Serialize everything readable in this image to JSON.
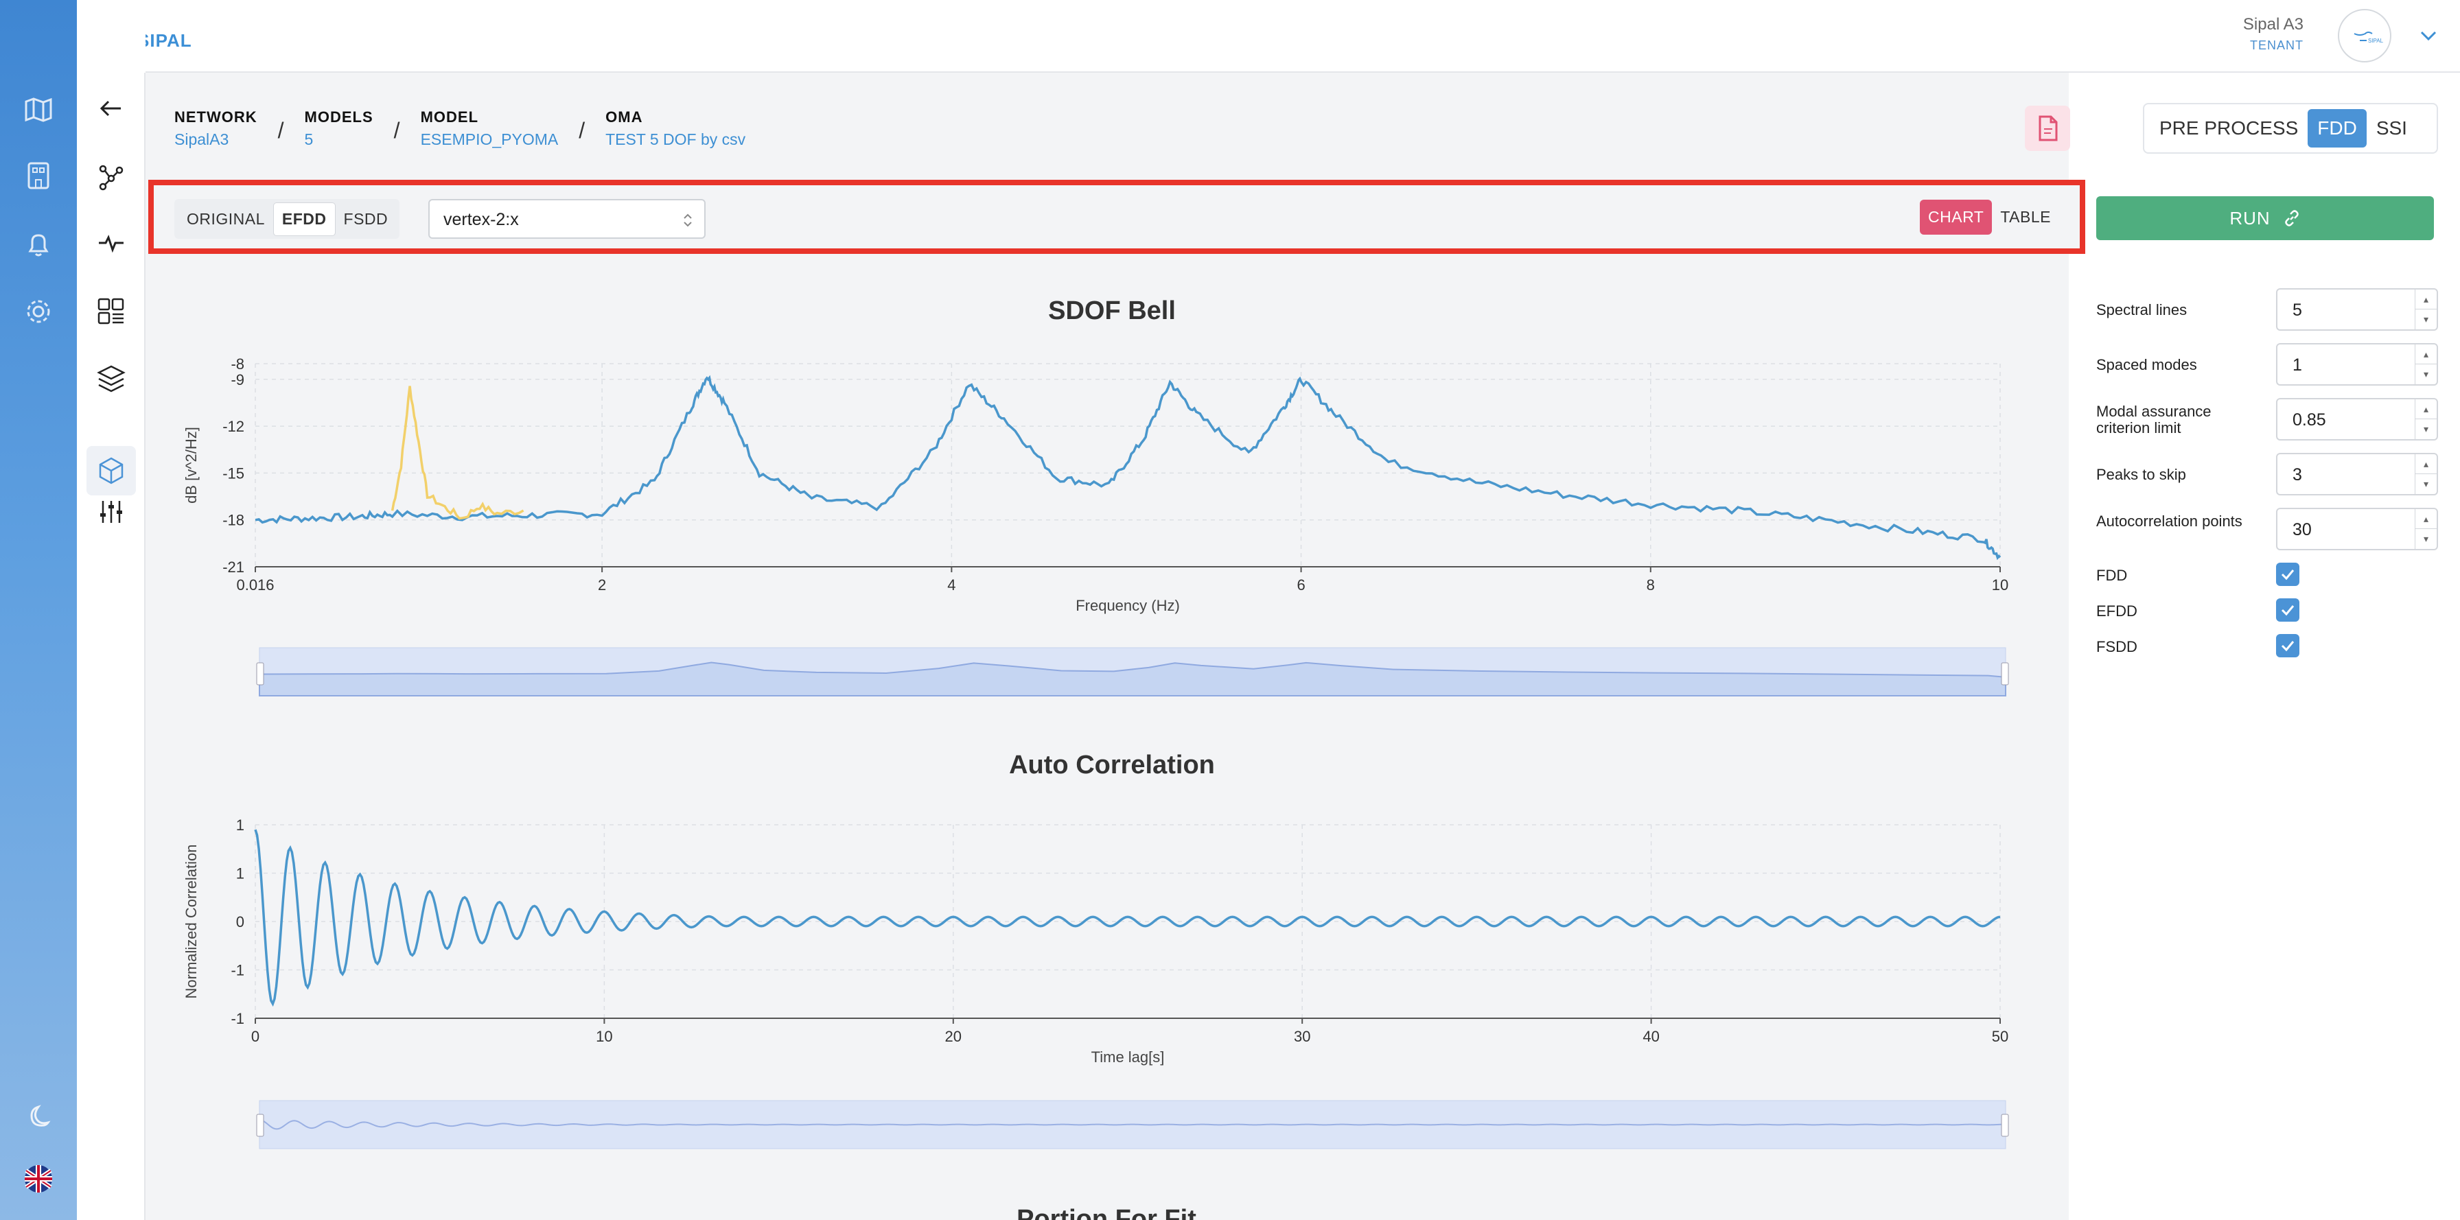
{
  "app": {
    "brand": "SIPAL",
    "user_name": "Sipal A3",
    "user_role": "TENANT",
    "avatar_text": "SIPAL"
  },
  "breadcrumb": [
    {
      "label": "NETWORK",
      "value": "SipalA3"
    },
    {
      "label": "MODELS",
      "value": "5"
    },
    {
      "label": "MODEL",
      "value": "ESEMPIO_PYOMA"
    },
    {
      "label": "OMA",
      "value": "TEST 5 DOF by csv"
    }
  ],
  "breadcrumb_sep": "/",
  "modes": {
    "pre_process": "PRE PROCESS",
    "fdd": "FDD",
    "ssi": "SSI",
    "active": "FDD"
  },
  "toolbar": {
    "methods": [
      "ORIGINAL",
      "EFDD",
      "FSDD"
    ],
    "active_method": "EFDD",
    "selected_channel": "vertex-2:x",
    "view_chart": "CHART",
    "view_table": "TABLE",
    "active_view": "CHART"
  },
  "run_label": "RUN",
  "params": {
    "spectral_lines": {
      "label": "Spectral lines",
      "value": "5"
    },
    "spaced_modes": {
      "label": "Spaced modes",
      "value": "1"
    },
    "mac_limit": {
      "label": "Modal assurance criterion limit",
      "value": "0.85"
    },
    "peaks_to_skip": {
      "label": "Peaks to skip",
      "value": "3"
    },
    "autocorrelation_points": {
      "label": "Autocorrelation points",
      "value": "30"
    },
    "fdd": {
      "label": "FDD",
      "checked": true
    },
    "efdd": {
      "label": "EFDD",
      "checked": true
    },
    "fsdd": {
      "label": "FSDD",
      "checked": true
    }
  },
  "colors": {
    "accent": "#4b93d6",
    "highlight": "#e8342a",
    "run": "#4fae7f",
    "chart_active": "#e05373",
    "series_blue": "#4a97cc",
    "series_yellow": "#f2d06a"
  },
  "chart_data": [
    {
      "type": "line",
      "title": "SDOF Bell",
      "xlabel": "Frequency (Hz)",
      "ylabel": "dB [v^2/Hz]",
      "xlim": [
        0.016,
        10
      ],
      "ylim": [
        -21,
        -8
      ],
      "x_ticks": [
        "0.016",
        "2",
        "4",
        "6",
        "8",
        "10"
      ],
      "y_ticks": [
        "-8",
        "-9",
        "-12",
        "-15",
        "-18",
        "-21"
      ],
      "series": [
        {
          "x": [
            0.016,
            0.3,
            0.6,
            0.8,
            1.2,
            1.6,
            2.0,
            2.3,
            2.5,
            2.6,
            2.7,
            2.9,
            3.2,
            3.6,
            3.9,
            4.1,
            4.3,
            4.6,
            4.9,
            5.1,
            5.25,
            5.4,
            5.7,
            5.9,
            6.0,
            6.2,
            6.5,
            7.0,
            7.5,
            8.0,
            8.5,
            9.0,
            9.5,
            9.9,
            10.0
          ],
          "y": [
            -18.0,
            -17.9,
            -17.8,
            -17.6,
            -17.8,
            -17.7,
            -17.6,
            -15.5,
            -11.0,
            -8.8,
            -10.5,
            -15.0,
            -16.6,
            -17.2,
            -13.5,
            -9.3,
            -11.5,
            -15.3,
            -15.8,
            -12.8,
            -9.2,
            -11.2,
            -13.8,
            -10.8,
            -9.0,
            -11.3,
            -14.3,
            -15.6,
            -16.4,
            -17.0,
            -17.4,
            -18.0,
            -18.7,
            -19.2,
            -20.4
          ]
        },
        {
          "x": [
            0.8,
            0.85,
            0.9,
            0.95,
            1.0,
            1.1,
            1.2,
            1.3,
            1.4,
            1.55
          ],
          "y": [
            -17.4,
            -14.5,
            -9.5,
            -13.0,
            -16.4,
            -17.2,
            -17.9,
            -17.1,
            -17.6,
            -17.4
          ]
        }
      ]
    },
    {
      "type": "line",
      "title": "Auto Correlation",
      "xlabel": "Time lag[s]",
      "ylabel": "Normalized Correlation",
      "xlim": [
        0,
        50
      ],
      "ylim": [
        -1,
        1
      ],
      "x_ticks": [
        "0",
        "10",
        "20",
        "30",
        "40",
        "50"
      ],
      "y_ticks": [
        "1",
        "1",
        "0",
        "-1",
        "-1"
      ],
      "series": [
        {
          "decay_amplitude": 1.0,
          "period_s": 1.0,
          "residual_amplitude": 0.05
        }
      ]
    }
  ],
  "partial_title": "Portion For Fit"
}
